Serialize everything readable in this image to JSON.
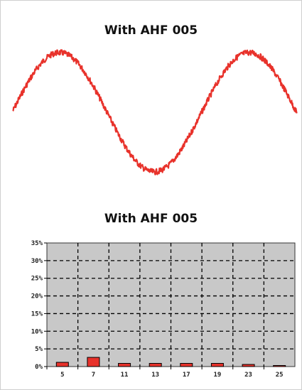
{
  "chart_data": [
    {
      "type": "line",
      "title": "With AHF 005",
      "series_color": "#e8322b",
      "wave": {
        "cycles": 1.5,
        "noise": "high-frequency ripple"
      }
    },
    {
      "type": "bar",
      "title": "With AHF 005",
      "categories": [
        "5",
        "7",
        "11",
        "13",
        "17",
        "19",
        "23",
        "25"
      ],
      "values": [
        1.2,
        2.6,
        0.9,
        0.9,
        0.9,
        0.9,
        0.6,
        0.3
      ],
      "ylim": [
        0,
        35
      ],
      "y_ticks": [
        "0%",
        "5%",
        "10%",
        "15%",
        "20%",
        "25%",
        "30%",
        "35%"
      ],
      "grid": true,
      "bar_color": "#e8322b",
      "plot_bg": "#c8c8c8"
    }
  ]
}
